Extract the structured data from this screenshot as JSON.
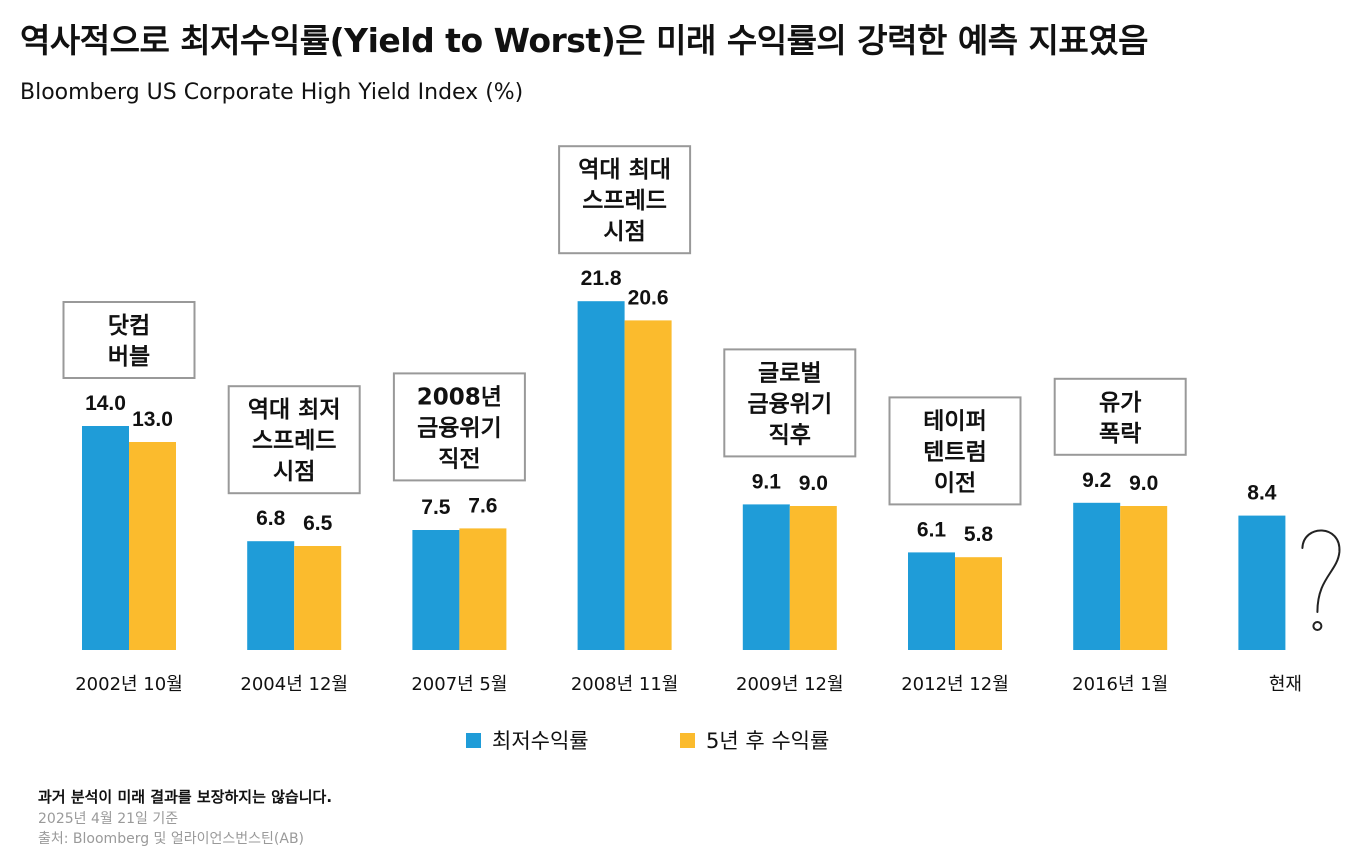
{
  "title": "역사적으로 최저수익률(Yield to Worst)은 미래 수익률의 강력한 예측 지표였음",
  "subtitle": "Bloomberg US Corporate High Yield Index (%)",
  "colors": {
    "ytw": "#1f9cd8",
    "fwd": "#fbbb2d",
    "box_border": "#999999"
  },
  "chart_data": {
    "type": "bar",
    "title": "",
    "xlabel": "",
    "ylabel": "",
    "ylim": [
      0,
      22
    ],
    "grid": false,
    "legend_position": "bottom-center",
    "categories": [
      "2002년 10월",
      "2004년 12월",
      "2007년 5월",
      "2008년 11월",
      "2009년 12월",
      "2012년 12월",
      "2016년 1월",
      "현재"
    ],
    "series": [
      {
        "name": "최저수익률",
        "values": [
          14.0,
          6.8,
          7.5,
          21.8,
          9.1,
          6.1,
          9.2,
          8.4
        ],
        "labels": [
          "14.0",
          "6.8",
          "7.5",
          "21.8",
          "9.1",
          "6.1",
          "9.2",
          "8.4"
        ]
      },
      {
        "name": "5년 후 수익률",
        "values": [
          13.0,
          6.5,
          7.6,
          20.6,
          9.0,
          5.8,
          9.0,
          null
        ],
        "labels": [
          "13.0",
          "6.5",
          "7.6",
          "20.6",
          "9.0",
          "5.8",
          "9.0",
          ""
        ]
      }
    ],
    "annotations": [
      {
        "category": "2002년 10월",
        "lines": [
          "닷컴",
          "버블"
        ]
      },
      {
        "category": "2004년 12월",
        "lines": [
          "역대 최저",
          "스프레드",
          "시점"
        ]
      },
      {
        "category": "2007년 5월",
        "lines": [
          "2008년",
          "금융위기",
          "직전"
        ]
      },
      {
        "category": "2008년 11월",
        "lines": [
          "역대 최대",
          "스프레드",
          "시점"
        ]
      },
      {
        "category": "2009년 12월",
        "lines": [
          "글로벌",
          "금융위기",
          "직후"
        ]
      },
      {
        "category": "2012년 12월",
        "lines": [
          "테이퍼",
          "텐트럼",
          "이전"
        ]
      },
      {
        "category": "2016년 1월",
        "lines": [
          "유가",
          "폭락"
        ]
      }
    ],
    "unknown_marker": {
      "category": "현재",
      "symbol": "?"
    }
  },
  "footnotes": {
    "disclaimer": "과거 분석이 미래 결과를 보장하지는 않습니다.",
    "as_of": "2025년 4월 21일 기준",
    "source": "출처: Bloomberg 및 얼라이언스번스틴(AB)"
  }
}
